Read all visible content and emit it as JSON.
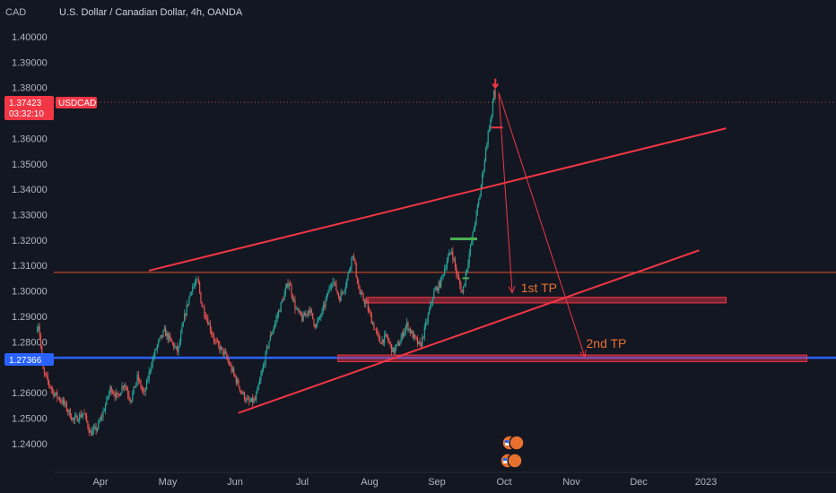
{
  "chart_data": {
    "type": "candlestick",
    "title": "U.S. Dollar / Canadian Dollar, 4h, OANDA",
    "currency_label": "CAD",
    "symbol": "USDCAD",
    "last_price": "1.37423",
    "countdown": "03:32:10",
    "marked_level": "1.27366",
    "y_ticks": [
      "1.40000",
      "1.39000",
      "1.38000",
      "1.36000",
      "1.35000",
      "1.34000",
      "1.33000",
      "1.32000",
      "1.31000",
      "1.30000",
      "1.29000",
      "1.28000",
      "1.26000",
      "1.25000",
      "1.24000"
    ],
    "x_ticks": [
      "Apr",
      "May",
      "Jun",
      "Jul",
      "Aug",
      "Sep",
      "Oct",
      "Nov",
      "Dec",
      "2023"
    ],
    "ylim": [
      1.235,
      1.405
    ],
    "xlim": [
      0,
      9.45
    ],
    "price_path": [
      [
        0.0,
        1.284
      ],
      [
        0.08,
        1.287
      ],
      [
        0.15,
        1.268
      ],
      [
        0.3,
        1.26
      ],
      [
        0.45,
        1.256
      ],
      [
        0.6,
        1.249
      ],
      [
        0.75,
        1.252
      ],
      [
        0.85,
        1.244
      ],
      [
        0.95,
        1.246
      ],
      [
        1.05,
        1.253
      ],
      [
        1.15,
        1.262
      ],
      [
        1.25,
        1.258
      ],
      [
        1.35,
        1.264
      ],
      [
        1.45,
        1.257
      ],
      [
        1.55,
        1.266
      ],
      [
        1.65,
        1.259
      ],
      [
        1.75,
        1.271
      ],
      [
        1.85,
        1.279
      ],
      [
        1.95,
        1.284
      ],
      [
        2.05,
        1.28
      ],
      [
        2.15,
        1.276
      ],
      [
        2.25,
        1.29
      ],
      [
        2.35,
        1.301
      ],
      [
        2.45,
        1.304
      ],
      [
        2.5,
        1.295
      ],
      [
        2.6,
        1.288
      ],
      [
        2.7,
        1.28
      ],
      [
        2.85,
        1.275
      ],
      [
        3.0,
        1.266
      ],
      [
        3.1,
        1.26
      ],
      [
        3.2,
        1.256
      ],
      [
        3.3,
        1.257
      ],
      [
        3.4,
        1.268
      ],
      [
        3.5,
        1.28
      ],
      [
        3.6,
        1.288
      ],
      [
        3.7,
        1.296
      ],
      [
        3.8,
        1.304
      ],
      [
        3.9,
        1.293
      ],
      [
        4.0,
        1.289
      ],
      [
        4.1,
        1.293
      ],
      [
        4.2,
        1.286
      ],
      [
        4.3,
        1.292
      ],
      [
        4.45,
        1.305
      ],
      [
        4.55,
        1.297
      ],
      [
        4.65,
        1.303
      ],
      [
        4.75,
        1.315
      ],
      [
        4.85,
        1.299
      ],
      [
        4.95,
        1.295
      ],
      [
        5.05,
        1.287
      ],
      [
        5.15,
        1.28
      ],
      [
        5.25,
        1.282
      ],
      [
        5.35,
        1.276
      ],
      [
        5.45,
        1.28
      ],
      [
        5.55,
        1.287
      ],
      [
        5.65,
        1.282
      ],
      [
        5.75,
        1.278
      ],
      [
        5.85,
        1.288
      ],
      [
        5.95,
        1.299
      ],
      [
        6.05,
        1.303
      ],
      [
        6.15,
        1.312
      ],
      [
        6.22,
        1.316
      ],
      [
        6.3,
        1.306
      ],
      [
        6.38,
        1.299
      ],
      [
        6.45,
        1.31
      ],
      [
        6.52,
        1.32
      ],
      [
        6.58,
        1.329
      ],
      [
        6.64,
        1.338
      ],
      [
        6.7,
        1.35
      ],
      [
        6.76,
        1.362
      ],
      [
        6.82,
        1.37
      ],
      [
        6.85,
        1.379
      ],
      [
        6.88,
        1.3742
      ]
    ],
    "trendlines": [
      {
        "name": "channel-upper",
        "from": [
          1.72,
          1.308
        ],
        "to": [
          10.3,
          1.364
        ]
      },
      {
        "name": "channel-lower",
        "from": [
          3.05,
          1.252
        ],
        "to": [
          9.9,
          1.316
        ]
      }
    ],
    "horizontal_lines": [
      {
        "name": "resistance-line",
        "value": 1.3073
      },
      {
        "name": "marked-level-line",
        "value": 1.2737
      }
    ],
    "zones": [
      {
        "name": "first-tp-zone",
        "x_from": 4.95,
        "x_to": 10.3,
        "y_from": 1.2953,
        "y_to": 1.2975
      },
      {
        "name": "second-tp-zone",
        "x_from": 4.53,
        "x_to": 11.5,
        "y_from": 1.2722,
        "y_to": 1.2748
      }
    ],
    "projection_arrows": [
      {
        "name": "arrow-to-first-tp",
        "from": [
          6.92,
          1.378
        ],
        "to": [
          7.12,
          1.2993
        ]
      },
      {
        "name": "arrow-to-second-tp",
        "from": [
          6.92,
          1.378
        ],
        "to": [
          8.2,
          1.274
        ]
      }
    ],
    "annotations": [
      {
        "name": "first-tp-label",
        "text": "1st TP",
        "x": 7.25,
        "y": 1.2995
      },
      {
        "name": "second-tp-label",
        "text": "2nd TP",
        "x": 8.22,
        "y": 1.2777
      }
    ],
    "colors": {
      "background": "#131722",
      "up": "#26a69a",
      "down": "#ef5350",
      "drawing": "#f23645",
      "resistance_line": "#e1532a",
      "blue_line": "#2962ff",
      "tp_text": "#e8712f",
      "green_marker": "#4caf50",
      "axis_text": "#b2b5be"
    },
    "legend": "none",
    "grid": false
  }
}
